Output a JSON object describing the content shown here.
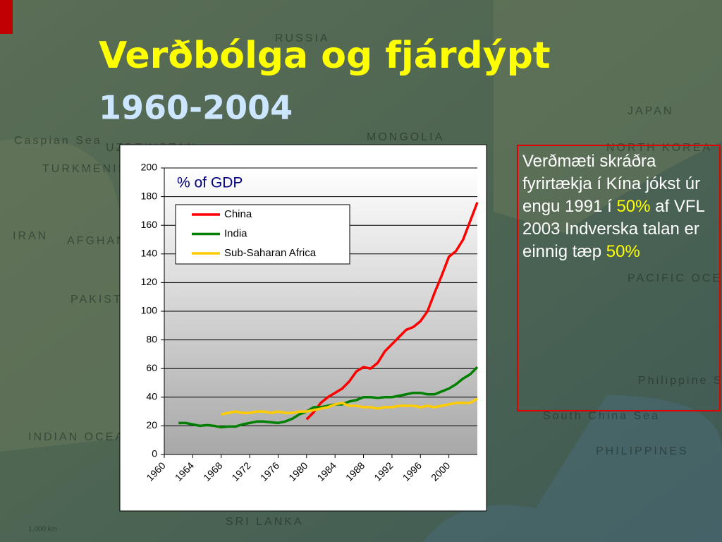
{
  "slide": {
    "title": "Verðbólga og fjárdýpt",
    "title_color": "#ffff00",
    "subtitle": "1960-2004",
    "subtitle_color": "#cce6ff",
    "textbox": [
      {
        "text": "Verðmæti skráðra fyrirtækja í Kína jókst úr engu 1991 í ",
        "color": "#ffffff"
      },
      {
        "text": "50%",
        "color": "#ffff00"
      },
      {
        "text": " af VFL 2003 Indverska talan er einnig tæp ",
        "color": "#ffffff"
      },
      {
        "text": "50%",
        "color": "#ffff00"
      }
    ],
    "map_labels": [
      "RUSSIA",
      "MONGOLIA",
      "JAPAN",
      "NORTH KOREA",
      "IRAN",
      "AFGHANISTAN",
      "PAKISTAN",
      "TURKMENISTAN",
      "UZBEKISTAN",
      "Caspian Sea",
      "INDIAN OCEAN",
      "SRI LANKA",
      "PHILIPPINES",
      "South China Sea",
      "Philippine Sea",
      "PACIFIC OCEAN",
      "1,000 km"
    ]
  },
  "chart_data": {
    "type": "line",
    "annotation": "% of GDP",
    "x": [
      1960,
      1961,
      1962,
      1963,
      1964,
      1965,
      1966,
      1967,
      1968,
      1969,
      1970,
      1971,
      1972,
      1973,
      1974,
      1975,
      1976,
      1977,
      1978,
      1979,
      1980,
      1981,
      1982,
      1983,
      1984,
      1985,
      1986,
      1987,
      1988,
      1989,
      1990,
      1991,
      1992,
      1993,
      1994,
      1995,
      1996,
      1997,
      1998,
      1999,
      2000,
      2001,
      2002,
      2003,
      2004
    ],
    "xlim": [
      1960,
      2004
    ],
    "xticks": [
      1960,
      1964,
      1968,
      1972,
      1976,
      1980,
      1984,
      1988,
      1992,
      1996,
      2000
    ],
    "ylim": [
      0,
      200
    ],
    "yticks": [
      0,
      20,
      40,
      60,
      80,
      100,
      120,
      140,
      160,
      180,
      200
    ],
    "grid": true,
    "legend": "upper left",
    "series": [
      {
        "name": "China",
        "color": "#ff0000",
        "values": [
          null,
          null,
          null,
          null,
          null,
          null,
          null,
          null,
          null,
          null,
          null,
          null,
          null,
          null,
          null,
          null,
          null,
          null,
          null,
          null,
          24.5,
          29.5,
          36,
          40,
          43,
          46,
          51,
          58,
          61,
          60,
          64,
          72,
          77,
          82,
          87,
          89,
          93,
          100,
          113,
          125,
          138,
          142,
          150,
          163,
          176
        ]
      },
      {
        "name": "India",
        "color": "#008000",
        "values": [
          null,
          null,
          22,
          22,
          21,
          20,
          20.5,
          20,
          19,
          19.5,
          19.5,
          21,
          22,
          23,
          23,
          22.5,
          22,
          23,
          25,
          28,
          30,
          33,
          33,
          34,
          35,
          35,
          37,
          38,
          40,
          40,
          39.5,
          40,
          40,
          41,
          42,
          43,
          43,
          42,
          42,
          44,
          46,
          49,
          53,
          56,
          61
        ]
      },
      {
        "name": "Sub-Saharan Africa",
        "color": "#ffcc00",
        "values": [
          null,
          null,
          null,
          null,
          null,
          null,
          null,
          null,
          28,
          29,
          30,
          29,
          29,
          30,
          30,
          29,
          30,
          29,
          29,
          30,
          30,
          31,
          32,
          33,
          35,
          36,
          34,
          34,
          33,
          33,
          32,
          33,
          33,
          34,
          34,
          34,
          33,
          34,
          33,
          34,
          35,
          36,
          36,
          36,
          39
        ]
      }
    ]
  }
}
